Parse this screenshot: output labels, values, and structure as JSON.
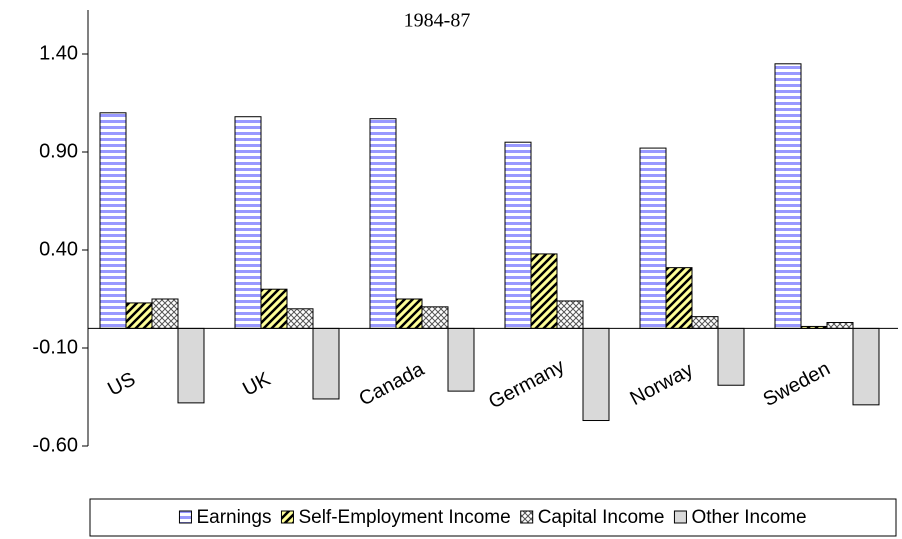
{
  "chart_data": {
    "type": "bar",
    "title": "1984-87",
    "categories": [
      "US",
      "UK",
      "Canada",
      "Germany",
      "Norway",
      "Sweden"
    ],
    "series": [
      {
        "name": "Earnings",
        "color": "#9999ff",
        "pattern": "horizontal",
        "values": [
          1.1,
          1.08,
          1.07,
          0.95,
          0.92,
          1.35
        ]
      },
      {
        "name": "Self-Employment Income",
        "color": "#ffff99",
        "pattern": "diagonal",
        "values": [
          0.13,
          0.2,
          0.15,
          0.38,
          0.31,
          0.01
        ]
      },
      {
        "name": "Capital Income",
        "color": "#ffffff",
        "pattern": "crosshatch",
        "values": [
          0.15,
          0.1,
          0.11,
          0.14,
          0.06,
          0.03
        ]
      },
      {
        "name": "Other Income",
        "color": "#d9d9d9",
        "pattern": "solid",
        "values": [
          -0.38,
          -0.36,
          -0.32,
          -0.47,
          -0.29,
          -0.39
        ]
      }
    ],
    "ylim": [
      -0.6,
      1.4
    ],
    "yticks": [
      {
        "value": -0.6,
        "label": "-0.60"
      },
      {
        "value": -0.1,
        "label": "-0.10"
      },
      {
        "value": 0.4,
        "label": "0.40"
      },
      {
        "value": 0.9,
        "label": "0.90"
      },
      {
        "value": 1.4,
        "label": "1.40"
      }
    ],
    "grid": false,
    "legend": "bottom"
  }
}
